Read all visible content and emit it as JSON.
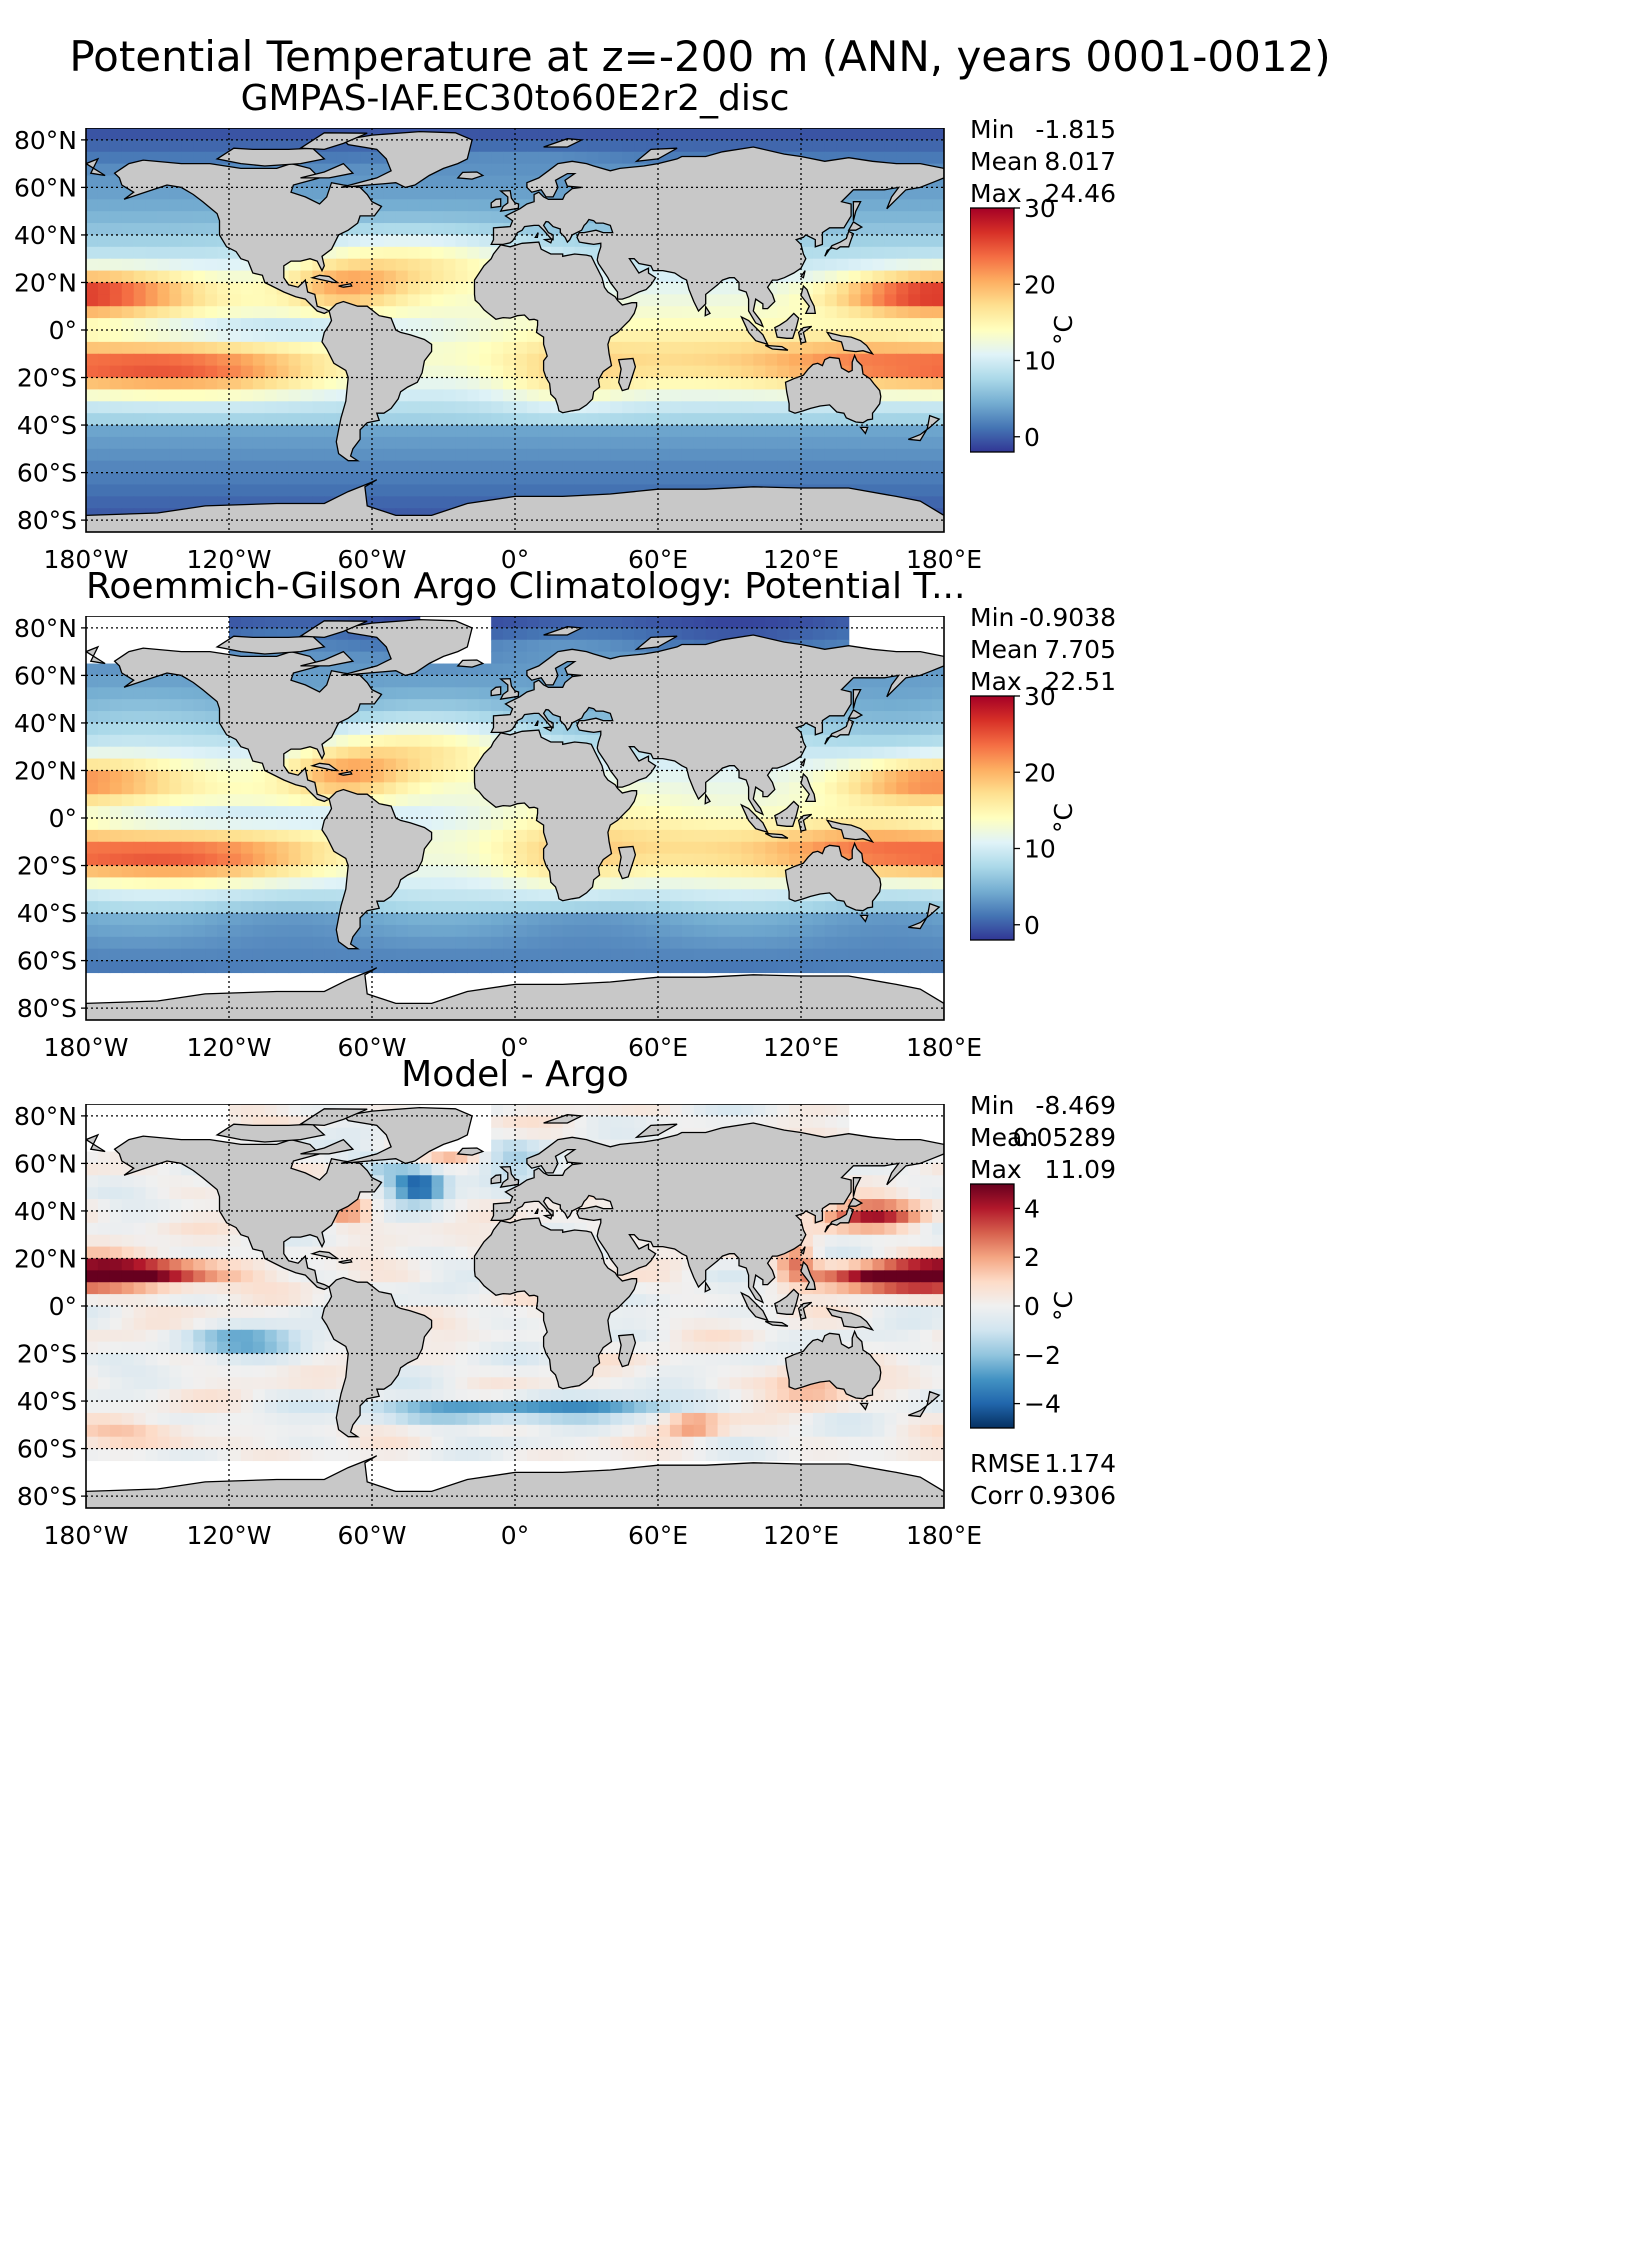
{
  "suptitle": "Potential Temperature at z=-200 m (ANN, years 0001-0012)",
  "colors": {
    "land": "#c8c8c8",
    "seaice_nodata": "#ffffff",
    "grid": "#000000"
  },
  "colormaps": {
    "temperature": [
      "#313695",
      "#4575b4",
      "#74add1",
      "#abd9e9",
      "#e0f3f8",
      "#ffffbf",
      "#fee090",
      "#fdae61",
      "#f46d43",
      "#d73027",
      "#a50026"
    ],
    "difference": [
      "#053061",
      "#2166ac",
      "#4393c3",
      "#92c5de",
      "#d1e5f0",
      "#f0f0f0",
      "#fddbc7",
      "#f4a582",
      "#d6604d",
      "#b2182b",
      "#67001f"
    ]
  },
  "chart_data": [
    {
      "type": "heatmap",
      "title": "GMPAS-IAF.EC30to60E2r2_disc",
      "xticks": [
        "180°W",
        "120°W",
        "60°W",
        "0°",
        "60°E",
        "120°E",
        "180°E"
      ],
      "yticks": [
        "80°N",
        "60°N",
        "40°N",
        "20°N",
        "0°",
        "20°S",
        "40°S",
        "60°S",
        "80°S"
      ],
      "xlim": [
        -180,
        180
      ],
      "ylim": [
        -85,
        85
      ],
      "stats": [
        {
          "label": "Min",
          "value": "-1.815"
        },
        {
          "label": "Mean",
          "value": "8.017"
        },
        {
          "label": "Max",
          "value": "24.46"
        }
      ],
      "colorbar": {
        "label": "°C",
        "ticks": [
          "30",
          "20",
          "10",
          "0"
        ],
        "range": [
          -2,
          30
        ],
        "cmap": "temperature"
      },
      "field": "model"
    },
    {
      "type": "heatmap",
      "title": "Roemmich-Gilson Argo Climatology: Potential T...",
      "xticks": [
        "180°W",
        "120°W",
        "60°W",
        "0°",
        "60°E",
        "120°E",
        "180°E"
      ],
      "yticks": [
        "80°N",
        "60°N",
        "40°N",
        "20°N",
        "0°",
        "20°S",
        "40°S",
        "60°S",
        "80°S"
      ],
      "xlim": [
        -180,
        180
      ],
      "ylim": [
        -85,
        85
      ],
      "stats": [
        {
          "label": "Min",
          "value": "-0.9038"
        },
        {
          "label": "Mean",
          "value": "7.705"
        },
        {
          "label": "Max",
          "value": "22.51"
        }
      ],
      "colorbar": {
        "label": "°C",
        "ticks": [
          "30",
          "20",
          "10",
          "0"
        ],
        "range": [
          -2,
          30
        ],
        "cmap": "temperature"
      },
      "field": "obs"
    },
    {
      "type": "heatmap",
      "title": "Model - Argo",
      "xticks": [
        "180°W",
        "120°W",
        "60°W",
        "0°",
        "60°E",
        "120°E",
        "180°E"
      ],
      "yticks": [
        "80°N",
        "60°N",
        "40°N",
        "20°N",
        "0°",
        "20°S",
        "40°S",
        "60°S",
        "80°S"
      ],
      "xlim": [
        -180,
        180
      ],
      "ylim": [
        -85,
        85
      ],
      "stats": [
        {
          "label": "Min",
          "value": "-8.469"
        },
        {
          "label": "Mean",
          "value": "0.05289"
        },
        {
          "label": "Max",
          "value": "11.09"
        }
      ],
      "extra_stats": [
        {
          "label": "RMSE",
          "value": "1.174"
        },
        {
          "label": "Corr",
          "value": "0.9306"
        }
      ],
      "colorbar": {
        "label": "°C",
        "ticks": [
          "4",
          "2",
          "0",
          "−2",
          "−4"
        ],
        "range": [
          -5,
          5
        ],
        "cmap": "difference"
      },
      "field": "diff"
    }
  ]
}
